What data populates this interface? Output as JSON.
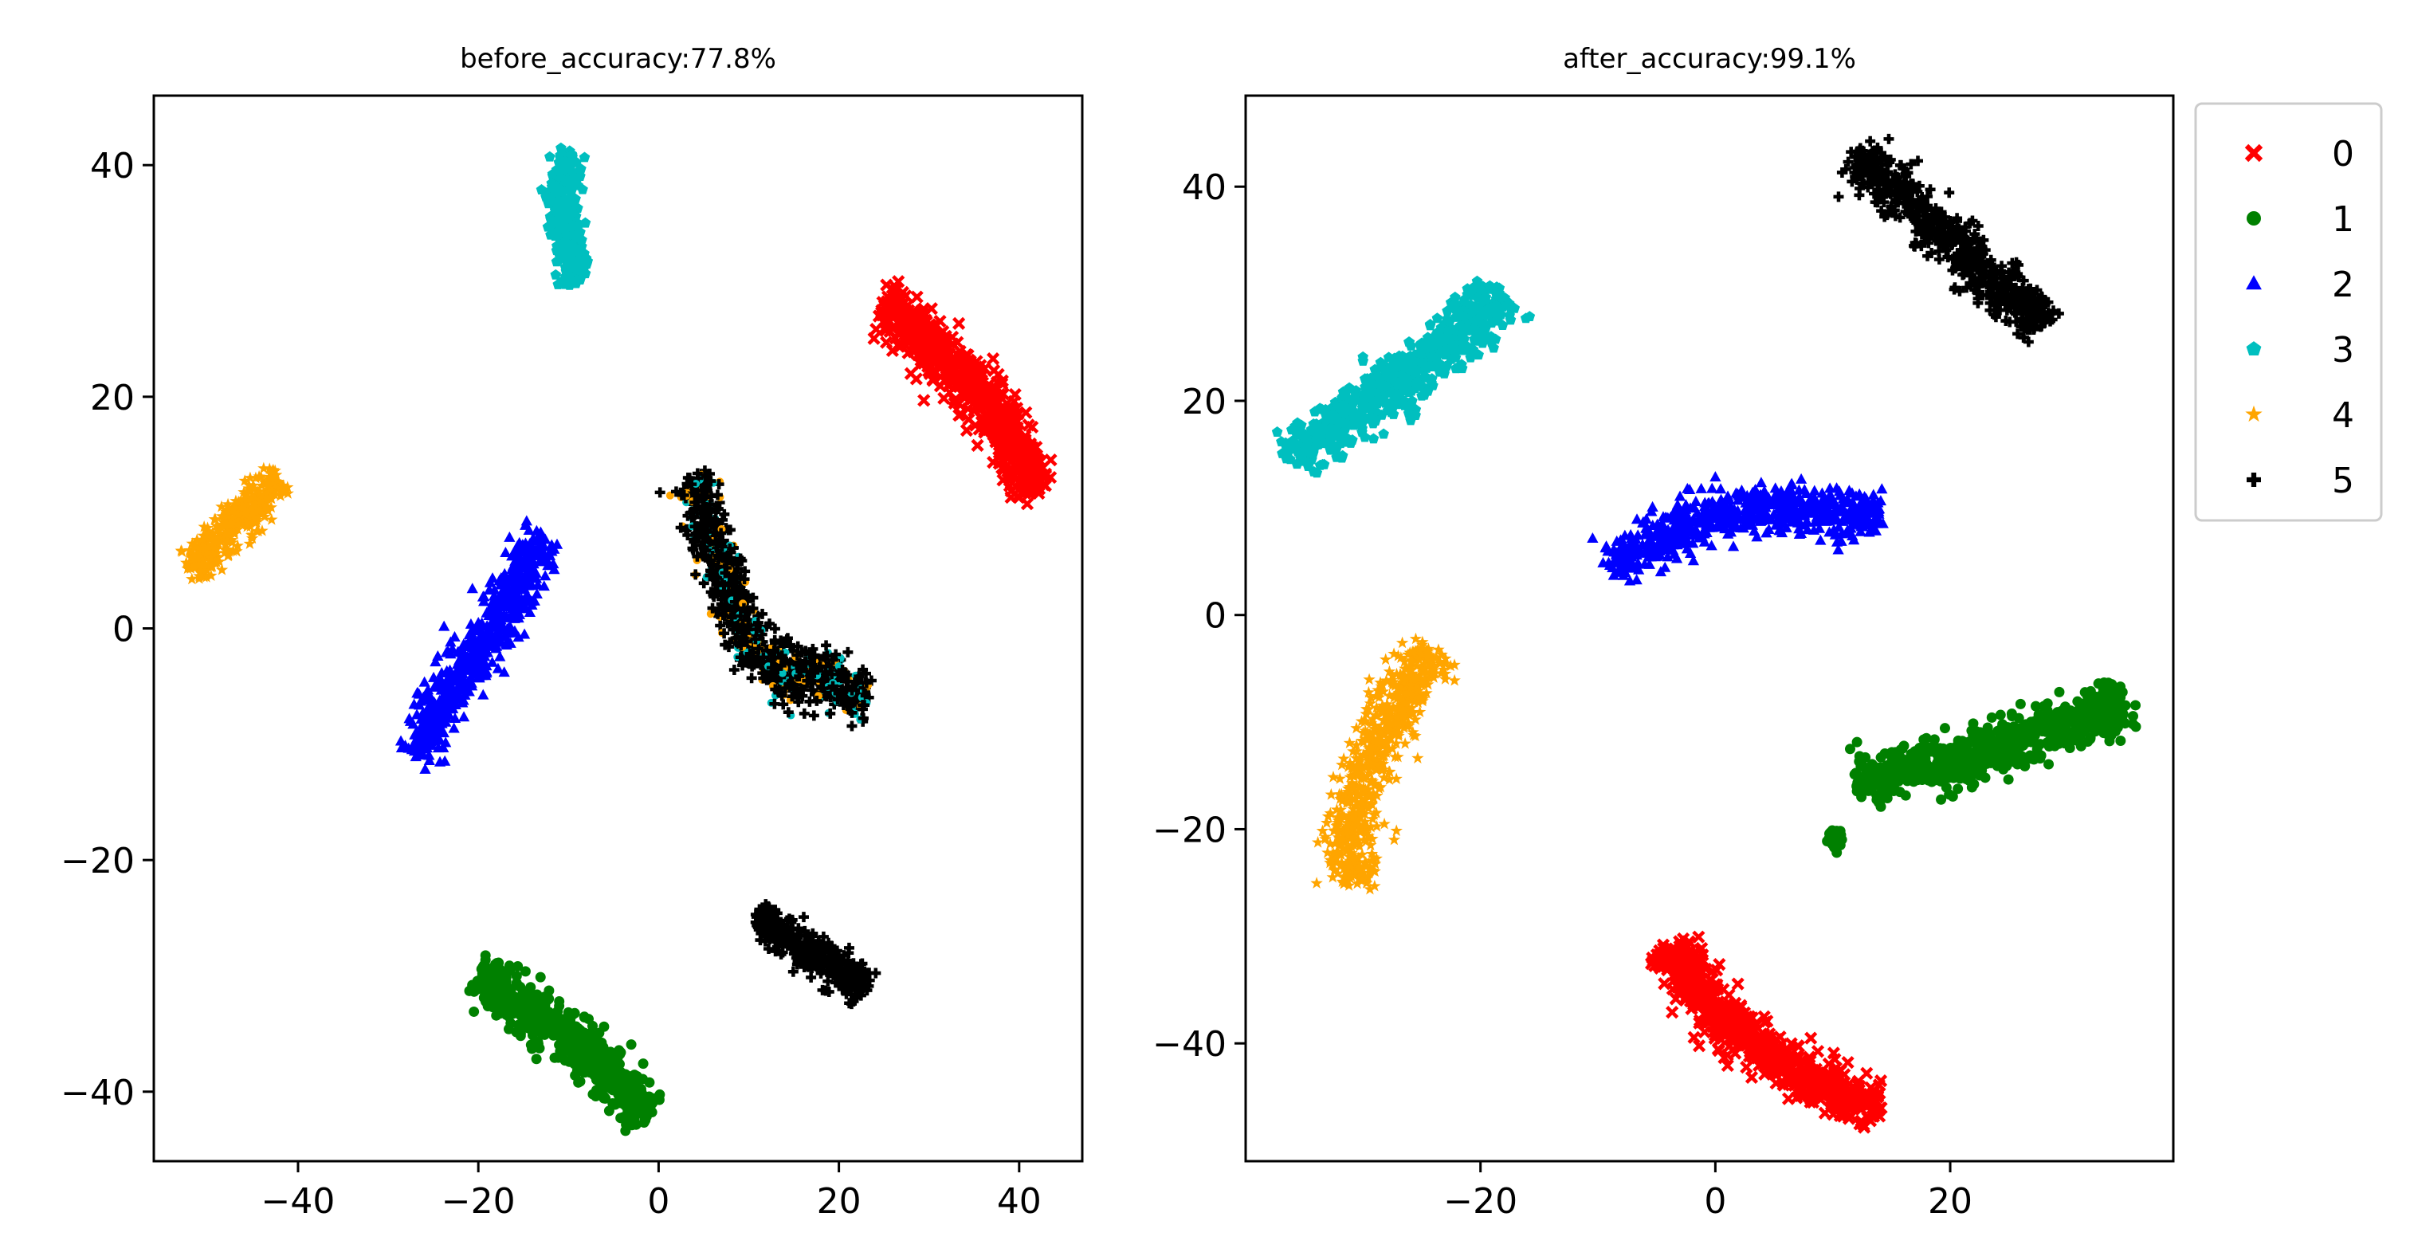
{
  "chart_data": [
    {
      "type": "scatter",
      "title": "before_accuracy:77.8%",
      "xlabel": "",
      "ylabel": "",
      "xlim": [
        -56,
        47
      ],
      "ylim": [
        -46,
        46
      ],
      "xticks": [
        -40,
        -20,
        0,
        20,
        40
      ],
      "yticks": [
        -40,
        -20,
        0,
        20,
        40
      ],
      "xtick_labels": [
        "−40",
        "−20",
        "0",
        "20",
        "40"
      ],
      "ytick_labels": [
        "−40",
        "−20",
        "0",
        "20",
        "40"
      ],
      "grid": false,
      "series": [
        {
          "label_ref": "0",
          "clusters": [
            {
              "path": [
                [
                  25,
                  28
                ],
                [
                  31,
                  24
                ],
                [
                  37,
                  19
                ],
                [
                  42,
                  12
                ]
              ],
              "width": 3.2
            }
          ]
        },
        {
          "label_ref": "1",
          "clusters": [
            {
              "path": [
                [
                  -20,
                  -30
                ],
                [
                  -12,
                  -34
                ],
                [
                  -6,
                  -38
                ],
                [
                  -1,
                  -42
                ]
              ],
              "width": 3.2
            }
          ]
        },
        {
          "label_ref": "2",
          "clusters": [
            {
              "path": [
                [
                  -27,
                  -11
                ],
                [
                  -22,
                  -4
                ],
                [
                  -18,
                  0
                ],
                [
                  -13,
                  8
                ]
              ],
              "width": 3.2
            }
          ]
        },
        {
          "label_ref": "3",
          "clusters": [
            {
              "path": [
                [
                  -10,
                  41
                ],
                [
                  -11,
                  36
                ],
                [
                  -9,
                  30
                ]
              ],
              "width": 2.4
            }
          ]
        },
        {
          "label_ref": "4",
          "clusters": [
            {
              "path": [
                [
                  -52,
                  5
                ],
                [
                  -47,
                  9
                ],
                [
                  -42,
                  13
                ]
              ],
              "width": 2.6
            }
          ]
        },
        {
          "label_ref": "5",
          "clusters": [
            {
              "path": [
                [
                  4,
                  13
                ],
                [
                  6,
                  7
                ],
                [
                  9,
                  1
                ],
                [
                  12,
                  -3
                ],
                [
                  17,
                  -4
                ],
                [
                  23,
                  -6
                ]
              ],
              "width": 3.2,
              "edge_colors": [
                "#ffa500",
                "#00bfbf"
              ]
            },
            {
              "path": [
                [
                  11,
                  -25
                ],
                [
                  17,
                  -28
                ],
                [
                  23,
                  -31
                ]
              ],
              "width": 2.4
            }
          ]
        }
      ]
    },
    {
      "type": "scatter",
      "title": "after_accuracy:99.1%",
      "xlabel": "",
      "ylabel": "",
      "xlim": [
        -40,
        39
      ],
      "ylim": [
        -51,
        48.5
      ],
      "xticks": [
        -20,
        0,
        20
      ],
      "yticks": [
        -40,
        -20,
        0,
        20,
        40
      ],
      "xtick_labels": [
        "−20",
        "0",
        "20"
      ],
      "ytick_labels": [
        "−40",
        "−20",
        "0",
        "20",
        "40"
      ],
      "grid": false,
      "series": [
        {
          "label_ref": "0",
          "clusters": [
            {
              "path": [
                [
                  -4,
                  -31
                ],
                [
                  1,
                  -38
                ],
                [
                  7,
                  -43
                ],
                [
                  14,
                  -46
                ]
              ],
              "width": 3.2
            }
          ]
        },
        {
          "label_ref": "1",
          "clusters": [
            {
              "path": [
                [
                  12,
                  -15
                ],
                [
                  20,
                  -14
                ],
                [
                  28,
                  -11
                ],
                [
                  35,
                  -8
                ]
              ],
              "width": 3.4
            },
            {
              "path": [
                [
                  10,
                  -21
                ],
                [
                  10.2,
                  -21
                ]
              ],
              "width": 1.2
            }
          ]
        },
        {
          "label_ref": "2",
          "clusters": [
            {
              "path": [
                [
                  -9,
                  5
                ],
                [
                  -3,
                  8
                ],
                [
                  3,
                  10
                ],
                [
                  8,
                  10
                ],
                [
                  14,
                  9
                ]
              ],
              "width": 3.2
            }
          ]
        },
        {
          "label_ref": "3",
          "clusters": [
            {
              "path": [
                [
                  -36,
                  15
                ],
                [
                  -29,
                  20
                ],
                [
                  -23,
                  25
                ],
                [
                  -18,
                  30
                ]
              ],
              "width": 3.4
            }
          ]
        },
        {
          "label_ref": "4",
          "clusters": [
            {
              "path": [
                [
                  -24,
                  -3
                ],
                [
                  -28,
                  -10
                ],
                [
                  -31,
                  -18
                ],
                [
                  -31,
                  -25
                ]
              ],
              "width": 3.2
            }
          ]
        },
        {
          "label_ref": "5",
          "clusters": [
            {
              "path": [
                [
                  12,
                  43
                ],
                [
                  17,
                  38
                ],
                [
                  23,
                  32
                ],
                [
                  28,
                  27
                ]
              ],
              "width": 3.0
            }
          ]
        }
      ]
    }
  ],
  "legend": {
    "placement": "outside-right",
    "entries": [
      {
        "label": "0",
        "marker": "x",
        "color": "#ff0000"
      },
      {
        "label": "1",
        "marker": "circle",
        "color": "#008000"
      },
      {
        "label": "2",
        "marker": "triangle",
        "color": "#0000ff"
      },
      {
        "label": "3",
        "marker": "pentagon",
        "color": "#00bfbf"
      },
      {
        "label": "4",
        "marker": "star",
        "color": "#ffa500"
      },
      {
        "label": "5",
        "marker": "plus",
        "color": "#000000"
      }
    ]
  }
}
